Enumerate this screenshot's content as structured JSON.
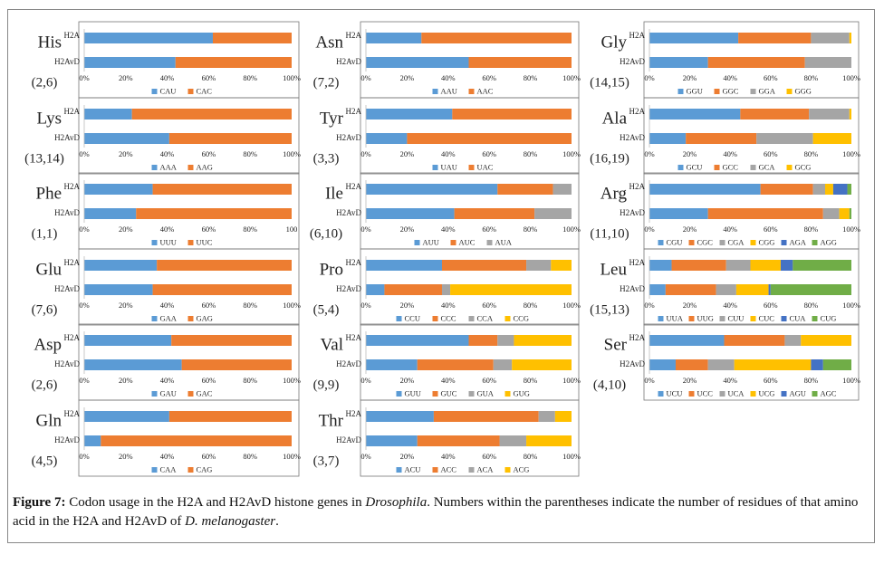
{
  "chart_data": [
    {
      "type": "bar",
      "title": "His",
      "annotation": "(2,6)",
      "categories": [
        "H2A",
        "H2AvD"
      ],
      "series": [
        {
          "name": "CAU",
          "color": "#5b9bd5",
          "values": [
            62,
            44
          ]
        },
        {
          "name": "CAC",
          "color": "#ed7d31",
          "values": [
            38,
            56
          ]
        }
      ],
      "xlim": [
        0,
        100
      ],
      "xticks": [
        {
          "value": 0,
          "label": "0%"
        },
        {
          "value": 20,
          "label": "20%"
        },
        {
          "value": 40,
          "label": "40%"
        },
        {
          "value": 60,
          "label": "60%"
        },
        {
          "value": 80,
          "label": "80%"
        },
        {
          "value": 100,
          "label": "100%"
        }
      ]
    },
    {
      "type": "bar",
      "title": "Lys",
      "annotation": "(13,14)",
      "categories": [
        "H2A",
        "H2AvD"
      ],
      "series": [
        {
          "name": "AAA",
          "color": "#5b9bd5",
          "values": [
            23,
            41
          ]
        },
        {
          "name": "AAG",
          "color": "#ed7d31",
          "values": [
            77,
            59
          ]
        }
      ],
      "xlim": [
        0,
        100
      ],
      "xticks": [
        {
          "value": 0,
          "label": "0%"
        },
        {
          "value": 20,
          "label": "20%"
        },
        {
          "value": 40,
          "label": "40%"
        },
        {
          "value": 60,
          "label": "60%"
        },
        {
          "value": 80,
          "label": "80%"
        },
        {
          "value": 100,
          "label": "100%"
        }
      ]
    },
    {
      "type": "bar",
      "title": "Phe",
      "annotation": "(1,1)",
      "categories": [
        "H2A",
        "H2AvD"
      ],
      "series": [
        {
          "name": "UUU",
          "color": "#5b9bd5",
          "values": [
            33,
            25
          ]
        },
        {
          "name": "UUC",
          "color": "#ed7d31",
          "values": [
            67,
            75
          ]
        }
      ],
      "xlim": [
        0,
        100
      ],
      "xticks": [
        {
          "value": 0,
          "label": "0%"
        },
        {
          "value": 20,
          "label": "20%"
        },
        {
          "value": 40,
          "label": "40%"
        },
        {
          "value": 60,
          "label": "60%"
        },
        {
          "value": 80,
          "label": "80%"
        },
        100
      ]
    },
    {
      "type": "bar",
      "title": "Glu",
      "annotation": "(7,6)",
      "categories": [
        "H2A",
        "H2AvD"
      ],
      "series": [
        {
          "name": "GAA",
          "color": "#5b9bd5",
          "values": [
            35,
            33
          ]
        },
        {
          "name": "GAG",
          "color": "#ed7d31",
          "values": [
            65,
            67
          ]
        }
      ],
      "xlim": [
        0,
        100
      ],
      "xticks": [
        {
          "value": 0,
          "label": "0%"
        },
        {
          "value": 20,
          "label": "20%"
        },
        {
          "value": 40,
          "label": "40%"
        },
        {
          "value": 60,
          "label": "60%"
        },
        {
          "value": 80,
          "label": "80%"
        },
        {
          "value": 100,
          "label": "100%"
        }
      ]
    },
    {
      "type": "bar",
      "title": "Asp",
      "annotation": "(2,6)",
      "categories": [
        "H2A",
        "H2AvD"
      ],
      "series": [
        {
          "name": "GAU",
          "color": "#5b9bd5",
          "values": [
            42,
            47
          ]
        },
        {
          "name": "GAC",
          "color": "#ed7d31",
          "values": [
            58,
            53
          ]
        }
      ],
      "xlim": [
        0,
        100
      ],
      "xticks": [
        {
          "value": 0,
          "label": "0%"
        },
        {
          "value": 20,
          "label": "20%"
        },
        {
          "value": 40,
          "label": "40%"
        },
        {
          "value": 60,
          "label": "60%"
        },
        {
          "value": 80,
          "label": "80%"
        },
        {
          "value": 100,
          "label": "100%"
        }
      ]
    },
    {
      "type": "bar",
      "title": "Gln",
      "annotation": "(4,5)",
      "categories": [
        "H2A",
        "H2AvD"
      ],
      "series": [
        {
          "name": "CAA",
          "color": "#5b9bd5",
          "values": [
            41,
            8
          ]
        },
        {
          "name": "CAG",
          "color": "#ed7d31",
          "values": [
            59,
            92
          ]
        }
      ],
      "xlim": [
        0,
        100
      ],
      "xticks": [
        {
          "value": 0,
          "label": "0%"
        },
        {
          "value": 20,
          "label": "20%"
        },
        {
          "value": 40,
          "label": "40%"
        },
        {
          "value": 60,
          "label": "60%"
        },
        {
          "value": 80,
          "label": "80%"
        },
        {
          "value": 100,
          "label": "100%"
        }
      ]
    },
    {
      "type": "bar",
      "title": "Asn",
      "annotation": "(7,2)",
      "categories": [
        "H2A",
        "H2AvD"
      ],
      "series": [
        {
          "name": "AAU",
          "color": "#5b9bd5",
          "values": [
            27,
            50
          ]
        },
        {
          "name": "AAC",
          "color": "#ed7d31",
          "values": [
            73,
            50
          ]
        }
      ],
      "xlim": [
        0,
        100
      ],
      "xticks": [
        {
          "value": 0,
          "label": "0%"
        },
        {
          "value": 20,
          "label": "20%"
        },
        {
          "value": 40,
          "label": "40%"
        },
        {
          "value": 60,
          "label": "60%"
        },
        {
          "value": 80,
          "label": "80%"
        },
        {
          "value": 100,
          "label": "100%"
        }
      ]
    },
    {
      "type": "bar",
      "title": "Tyr",
      "annotation": "(3,3)",
      "categories": [
        "H2A",
        "H2AvD"
      ],
      "series": [
        {
          "name": "UAU",
          "color": "#5b9bd5",
          "values": [
            42,
            20
          ]
        },
        {
          "name": "UAC",
          "color": "#ed7d31",
          "values": [
            58,
            80
          ]
        }
      ],
      "xlim": [
        0,
        100
      ],
      "xticks": [
        {
          "value": 0,
          "label": "0%"
        },
        {
          "value": 20,
          "label": "20%"
        },
        {
          "value": 40,
          "label": "40%"
        },
        {
          "value": 60,
          "label": "60%"
        },
        {
          "value": 80,
          "label": "80%"
        },
        {
          "value": 100,
          "label": "100%"
        }
      ]
    },
    {
      "type": "bar",
      "title": "Ile",
      "annotation": "(6,10)",
      "categories": [
        "H2A",
        "H2AvD"
      ],
      "series": [
        {
          "name": "AUU",
          "color": "#5b9bd5",
          "values": [
            64,
            43
          ]
        },
        {
          "name": "AUC",
          "color": "#ed7d31",
          "values": [
            27,
            39
          ]
        },
        {
          "name": "AUA",
          "color": "#a5a5a5",
          "values": [
            9,
            18
          ]
        }
      ],
      "xlim": [
        0,
        100
      ],
      "xticks": [
        {
          "value": 0,
          "label": "0%"
        },
        {
          "value": 20,
          "label": "20%"
        },
        {
          "value": 40,
          "label": "40%"
        },
        {
          "value": 60,
          "label": "60%"
        },
        {
          "value": 80,
          "label": "80%"
        },
        {
          "value": 100,
          "label": "100%"
        }
      ]
    },
    {
      "type": "bar",
      "title": "Pro",
      "annotation": "(5,4)",
      "categories": [
        "H2A",
        "H2AvD"
      ],
      "series": [
        {
          "name": "CCU",
          "color": "#5b9bd5",
          "values": [
            37,
            9
          ]
        },
        {
          "name": "CCC",
          "color": "#ed7d31",
          "values": [
            41,
            28
          ]
        },
        {
          "name": "CCA",
          "color": "#a5a5a5",
          "values": [
            12,
            4
          ]
        },
        {
          "name": "CCG",
          "color": "#ffc000",
          "values": [
            10,
            59
          ]
        }
      ],
      "xlim": [
        0,
        100
      ],
      "xticks": [
        {
          "value": 0,
          "label": "0%"
        },
        {
          "value": 20,
          "label": "20%"
        },
        {
          "value": 40,
          "label": "40%"
        },
        {
          "value": 60,
          "label": "60%"
        },
        {
          "value": 80,
          "label": "80%"
        },
        {
          "value": 100,
          "label": "100%"
        }
      ]
    },
    {
      "type": "bar",
      "title": "Val",
      "annotation": "(9,9)",
      "categories": [
        "H2A",
        "H2AvD"
      ],
      "series": [
        {
          "name": "GUU",
          "color": "#5b9bd5",
          "values": [
            50,
            25
          ]
        },
        {
          "name": "GUC",
          "color": "#ed7d31",
          "values": [
            14,
            37
          ]
        },
        {
          "name": "GUA",
          "color": "#a5a5a5",
          "values": [
            8,
            9
          ]
        },
        {
          "name": "GUG",
          "color": "#ffc000",
          "values": [
            28,
            29
          ]
        }
      ],
      "xlim": [
        0,
        100
      ],
      "xticks": [
        {
          "value": 0,
          "label": "0%"
        },
        {
          "value": 20,
          "label": "20%"
        },
        {
          "value": 40,
          "label": "40%"
        },
        {
          "value": 60,
          "label": "60%"
        },
        {
          "value": 80,
          "label": "80%"
        },
        {
          "value": 100,
          "label": "100%"
        }
      ]
    },
    {
      "type": "bar",
      "title": "Thr",
      "annotation": "(3,7)",
      "categories": [
        "H2A",
        "H2AvD"
      ],
      "series": [
        {
          "name": "ACU",
          "color": "#5b9bd5",
          "values": [
            33,
            25
          ]
        },
        {
          "name": "ACC",
          "color": "#ed7d31",
          "values": [
            51,
            40
          ]
        },
        {
          "name": "ACA",
          "color": "#a5a5a5",
          "values": [
            8,
            13
          ]
        },
        {
          "name": "ACG",
          "color": "#ffc000",
          "values": [
            8,
            22
          ]
        }
      ],
      "xlim": [
        0,
        100
      ],
      "xticks": [
        {
          "value": 0,
          "label": "0%"
        },
        {
          "value": 20,
          "label": "20%"
        },
        {
          "value": 40,
          "label": "40%"
        },
        {
          "value": 60,
          "label": "60%"
        },
        {
          "value": 80,
          "label": "80%"
        },
        {
          "value": 100,
          "label": "100%"
        }
      ]
    },
    {
      "type": "bar",
      "title": "Gly",
      "annotation": "(14,15)",
      "categories": [
        "H2A",
        "H2AvD"
      ],
      "series": [
        {
          "name": "GGU",
          "color": "#5b9bd5",
          "values": [
            44,
            29
          ]
        },
        {
          "name": "GGC",
          "color": "#ed7d31",
          "values": [
            36,
            48
          ]
        },
        {
          "name": "GGA",
          "color": "#a5a5a5",
          "values": [
            19,
            23
          ]
        },
        {
          "name": "GGG",
          "color": "#ffc000",
          "values": [
            1,
            0
          ]
        }
      ],
      "xlim": [
        0,
        100
      ],
      "xticks": [
        {
          "value": 0,
          "label": "0%"
        },
        {
          "value": 20,
          "label": "20%"
        },
        {
          "value": 40,
          "label": "40%"
        },
        {
          "value": 60,
          "label": "60%"
        },
        {
          "value": 80,
          "label": "80%"
        },
        {
          "value": 100,
          "label": "100%"
        }
      ]
    },
    {
      "type": "bar",
      "title": "Ala",
      "annotation": "(16,19)",
      "categories": [
        "H2A",
        "H2AvD"
      ],
      "series": [
        {
          "name": "GCU",
          "color": "#5b9bd5",
          "values": [
            45,
            18
          ]
        },
        {
          "name": "GCC",
          "color": "#ed7d31",
          "values": [
            34,
            35
          ]
        },
        {
          "name": "GCA",
          "color": "#a5a5a5",
          "values": [
            20,
            28
          ]
        },
        {
          "name": "GCG",
          "color": "#ffc000",
          "values": [
            1,
            19
          ]
        }
      ],
      "xlim": [
        0,
        100
      ],
      "xticks": [
        {
          "value": 0,
          "label": "0%"
        },
        {
          "value": 20,
          "label": "20%"
        },
        {
          "value": 40,
          "label": "40%"
        },
        {
          "value": 60,
          "label": "60%"
        },
        {
          "value": 80,
          "label": "80%"
        },
        {
          "value": 100,
          "label": "100%"
        }
      ]
    },
    {
      "type": "bar",
      "title": "Arg",
      "annotation": "(11,10)",
      "categories": [
        "H2A",
        "H2AvD"
      ],
      "series": [
        {
          "name": "CGU",
          "color": "#5b9bd5",
          "values": [
            55,
            29
          ]
        },
        {
          "name": "CGC",
          "color": "#ed7d31",
          "values": [
            26,
            57
          ]
        },
        {
          "name": "CGA",
          "color": "#a5a5a5",
          "values": [
            6,
            8
          ]
        },
        {
          "name": "CGG",
          "color": "#ffc000",
          "values": [
            4,
            5
          ]
        },
        {
          "name": "AGA",
          "color": "#4472c4",
          "values": [
            7,
            0
          ]
        },
        {
          "name": "AGG",
          "color": "#70ad47",
          "values": [
            2,
            1
          ]
        }
      ],
      "xlim": [
        0,
        100
      ],
      "xticks": [
        {
          "value": 0,
          "label": "0%"
        },
        {
          "value": 20,
          "label": "20%"
        },
        {
          "value": 40,
          "label": "40%"
        },
        {
          "value": 60,
          "label": "60%"
        },
        {
          "value": 80,
          "label": "80%"
        },
        {
          "value": 100,
          "label": "100%"
        }
      ]
    },
    {
      "type": "bar",
      "title": "Leu",
      "annotation": "(15,13)",
      "categories": [
        "H2A",
        "H2AvD"
      ],
      "series": [
        {
          "name": "UUA",
          "color": "#5b9bd5",
          "values": [
            11,
            8
          ]
        },
        {
          "name": "UUG",
          "color": "#ed7d31",
          "values": [
            27,
            25
          ]
        },
        {
          "name": "CUU",
          "color": "#a5a5a5",
          "values": [
            12,
            10
          ]
        },
        {
          "name": "CUC",
          "color": "#ffc000",
          "values": [
            15,
            16
          ]
        },
        {
          "name": "CUA",
          "color": "#4472c4",
          "values": [
            6,
            1
          ]
        },
        {
          "name": "CUG",
          "color": "#70ad47",
          "values": [
            29,
            40
          ]
        }
      ],
      "xlim": [
        0,
        100
      ],
      "xticks": [
        {
          "value": 0,
          "label": "0%"
        },
        {
          "value": 20,
          "label": "20%"
        },
        {
          "value": 40,
          "label": "40%"
        },
        {
          "value": 60,
          "label": "60%"
        },
        {
          "value": 80,
          "label": "80%"
        },
        {
          "value": 100,
          "label": "100%"
        }
      ]
    },
    {
      "type": "bar",
      "title": "Ser",
      "annotation": "(4,10)",
      "categories": [
        "H2A",
        "H2AvD"
      ],
      "series": [
        {
          "name": "UCU",
          "color": "#5b9bd5",
          "values": [
            37,
            13
          ]
        },
        {
          "name": "UCC",
          "color": "#ed7d31",
          "values": [
            30,
            16
          ]
        },
        {
          "name": "UCA",
          "color": "#a5a5a5",
          "values": [
            8,
            13
          ]
        },
        {
          "name": "UCG",
          "color": "#ffc000",
          "values": [
            25,
            38
          ]
        },
        {
          "name": "AGU",
          "color": "#4472c4",
          "values": [
            0,
            6
          ]
        },
        {
          "name": "AGC",
          "color": "#70ad47",
          "values": [
            0,
            14
          ]
        }
      ],
      "xlim": [
        0,
        100
      ],
      "xticks": [
        {
          "value": 0,
          "label": "0%"
        },
        {
          "value": 20,
          "label": "20%"
        },
        {
          "value": 40,
          "label": "40%"
        },
        {
          "value": 60,
          "label": "60%"
        },
        {
          "value": 80,
          "label": "80%"
        },
        {
          "value": 100,
          "label": "100%"
        }
      ]
    }
  ],
  "caption": {
    "label": "Figure 7:",
    "segments": [
      " Codon usage in the H2A and H2AvD histone genes in ",
      "Drosophila",
      ". Numbers within the parentheses indicate the number of residues of that amino acid in the H2A and H2AvD of ",
      "D. melanogaster",
      "."
    ]
  }
}
